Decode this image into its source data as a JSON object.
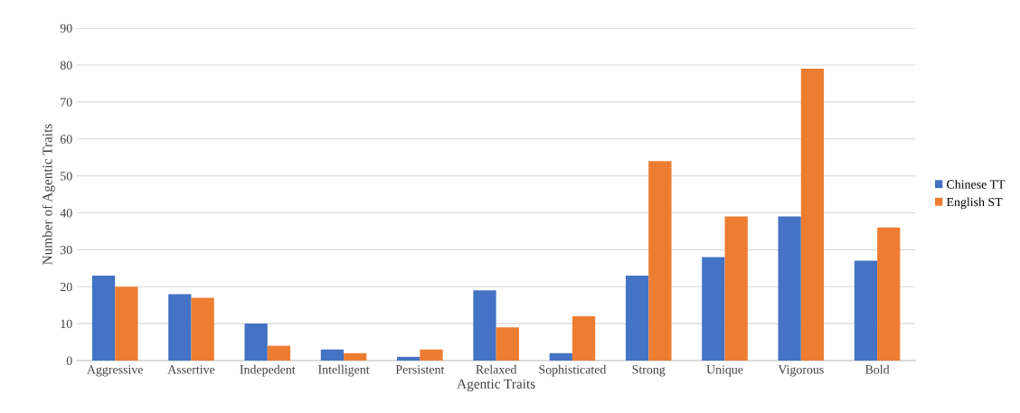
{
  "chart_data": {
    "type": "bar",
    "xlabel": "Agentic Traits",
    "ylabel": "Number of Agentic Traits",
    "categories": [
      "Aggressive",
      "Assertive",
      "Indepedent",
      "Intelligent",
      "Persistent",
      "Relaxed",
      "Sophisticated",
      "Strong",
      "Unique",
      "Vigorous",
      "Bold"
    ],
    "series": [
      {
        "name": "Chinese TT",
        "color": "#4472c4",
        "values": [
          23,
          18,
          10,
          3,
          1,
          19,
          2,
          23,
          28,
          39,
          27
        ]
      },
      {
        "name": "English ST",
        "color": "#ed7d31",
        "values": [
          20,
          17,
          4,
          2,
          3,
          9,
          12,
          54,
          39,
          79,
          36
        ]
      }
    ],
    "ylim": [
      0,
      90
    ],
    "yticks": [
      0,
      10,
      20,
      30,
      40,
      50,
      60,
      70,
      80,
      90
    ],
    "grid": "y",
    "legend": "right"
  }
}
